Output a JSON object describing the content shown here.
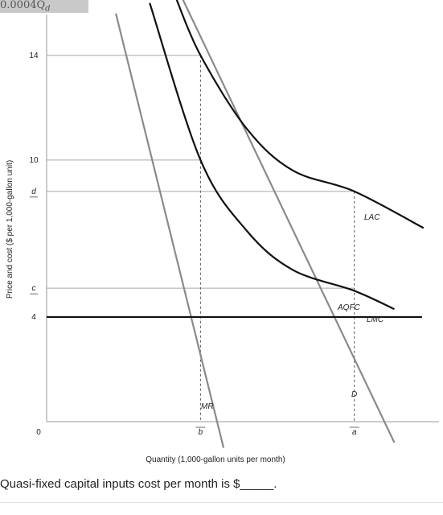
{
  "header_fragment": "0.0004Q",
  "header_fragment_sub": "d",
  "question": {
    "text": "Quasi-fixed capital inputs cost per month is $_____."
  },
  "chart_data": {
    "type": "line",
    "xlabel": "Quantity (1,000-gallon units per month)",
    "ylabel": "Price and cost ($ per 1,000-gallon unit)",
    "x_ticks": [
      {
        "label": "0",
        "value": 0,
        "underline": false
      },
      {
        "label": "b",
        "value": 10,
        "underline": true
      },
      {
        "label": "a",
        "value": 20,
        "underline": true
      }
    ],
    "y_ticks": [
      {
        "label": "14",
        "value": 14,
        "underline": false
      },
      {
        "label": "10",
        "value": 10,
        "underline": false
      },
      {
        "label": "d",
        "value": 8.8,
        "underline": true
      },
      {
        "label": "c",
        "value": 5.1,
        "underline": true
      },
      {
        "label": "4",
        "value": 4,
        "underline": false
      }
    ],
    "xlim": [
      0,
      25.5
    ],
    "ylim": [
      0,
      15.5
    ],
    "curve_labels": {
      "LAC": "LAC",
      "AQFC": "AQFC",
      "LMC": "LMC",
      "D": "D",
      "MR": "MR"
    },
    "series": [
      {
        "key": "D",
        "kind": "line",
        "points": [
          [
            8.8,
            16.2
          ],
          [
            22.6,
            -0.8
          ]
        ]
      },
      {
        "key": "MR",
        "kind": "line",
        "points": [
          [
            4.5,
            15.6
          ],
          [
            11.5,
            -1.0
          ]
        ]
      },
      {
        "key": "LMC",
        "kind": "line",
        "points": [
          [
            0,
            4
          ],
          [
            24.4,
            4
          ]
        ]
      },
      {
        "key": "LAC",
        "kind": "curve",
        "points": [
          [
            8.4,
            16.2
          ],
          [
            10,
            14
          ],
          [
            13,
            11.2
          ],
          [
            16,
            9.6
          ],
          [
            20,
            8.8
          ],
          [
            24.5,
            7.4
          ]
        ]
      },
      {
        "key": "AQFC",
        "kind": "curve",
        "points": [
          [
            6.7,
            16.0
          ],
          [
            10,
            10
          ],
          [
            13,
            7.3
          ],
          [
            16,
            5.8
          ],
          [
            20,
            5.0
          ],
          [
            22.6,
            4.3
          ]
        ]
      }
    ],
    "guides": [
      {
        "from": [
          0,
          14
        ],
        "to": [
          10,
          14
        ],
        "style": "solid"
      },
      {
        "from": [
          0,
          10
        ],
        "to": [
          10,
          10
        ],
        "style": "solid"
      },
      {
        "from": [
          0,
          8.8
        ],
        "to": [
          20,
          8.8
        ],
        "style": "solid"
      },
      {
        "from": [
          0,
          5.1
        ],
        "to": [
          20,
          5.1
        ],
        "style": "solid"
      },
      {
        "from": [
          10,
          14
        ],
        "to": [
          10,
          0
        ],
        "style": "dashed"
      },
      {
        "from": [
          20,
          8.8
        ],
        "to": [
          20,
          0
        ],
        "style": "dashed"
      }
    ]
  }
}
